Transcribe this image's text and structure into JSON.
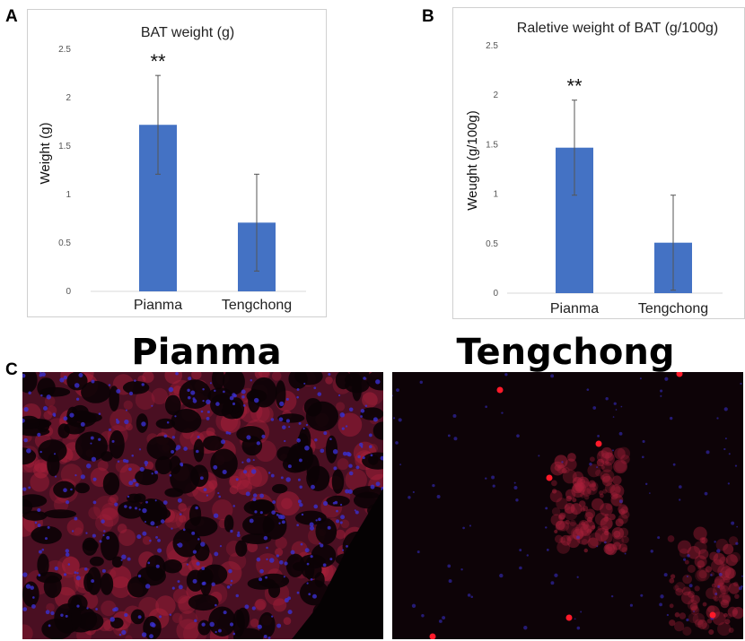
{
  "panels": {
    "a_letter": "A",
    "b_letter": "B",
    "c_letter": "C"
  },
  "chart_data": [
    {
      "type": "bar",
      "title": "BAT weight (g)",
      "xlabel": "",
      "ylabel": "Weight (g)",
      "categories": [
        "Pianma",
        "Tengchong"
      ],
      "values": [
        1.72,
        0.71
      ],
      "error": [
        0.51,
        0.5
      ],
      "significance": [
        "**",
        ""
      ],
      "ylim": [
        0,
        2.5
      ],
      "yticks": [
        "0",
        "0.5",
        "1",
        "1.5",
        "2",
        "2.5"
      ],
      "bar_color": "#4472c4",
      "grid": false,
      "legend": "none"
    },
    {
      "type": "bar",
      "title": "Raletive weight of BAT (g/100g)",
      "xlabel": "",
      "ylabel": "Weught (g/100g)",
      "categories": [
        "Pianma",
        "Tengchong"
      ],
      "values": [
        1.47,
        0.51
      ],
      "error": [
        0.48,
        0.48
      ],
      "significance": [
        "**",
        ""
      ],
      "ylim": [
        0,
        2.5
      ],
      "yticks": [
        "0",
        "0.5",
        "1",
        "1.5",
        "2",
        "2.5"
      ],
      "bar_color": "#4472c4",
      "grid": false,
      "legend": "none"
    }
  ],
  "micrographs": {
    "left_title": "Pianma",
    "right_title": "Tengchong",
    "stain_red": "#a8203a",
    "stain_blue": "#3a30d0"
  }
}
